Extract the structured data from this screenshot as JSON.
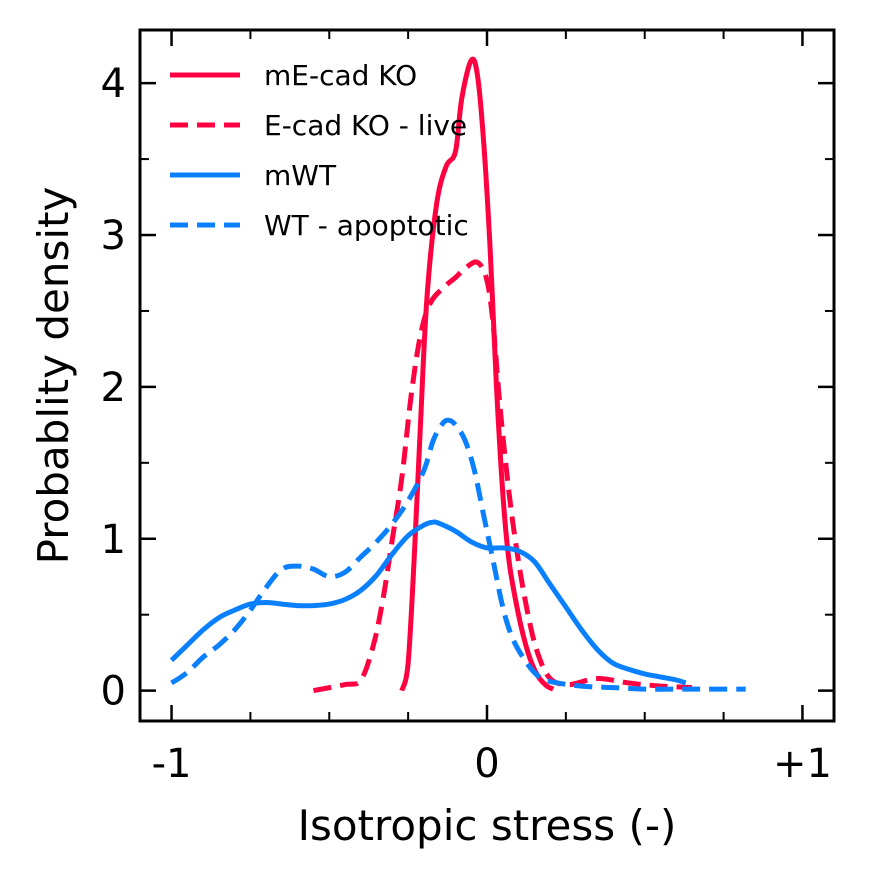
{
  "chart_data": {
    "type": "line",
    "title": "",
    "xlabel": "Isotropic stress (-)",
    "ylabel": "Probablity density",
    "xlim": [
      -1.1,
      1.1
    ],
    "ylim": [
      -0.2,
      4.35
    ],
    "x_ticks": [
      -1,
      0,
      1
    ],
    "x_tick_labels": [
      "-1",
      "0",
      "+1"
    ],
    "x_minor_ticks": [
      -0.75,
      -0.5,
      -0.25,
      0.25,
      0.5,
      0.75
    ],
    "y_ticks": [
      0,
      1,
      2,
      3,
      4
    ],
    "y_tick_labels": [
      "0",
      "1",
      "2",
      "3",
      "4"
    ],
    "y_minor_ticks": [
      0.5,
      1.5,
      2.5,
      3.5
    ],
    "grid": false,
    "legend_position": "top-left",
    "series": [
      {
        "name": "mE-cad KO",
        "color": "#ff0040",
        "dash": "solid",
        "points": [
          [
            -0.27,
            0.0
          ],
          [
            -0.25,
            0.18
          ],
          [
            -0.23,
            0.9
          ],
          [
            -0.21,
            1.8
          ],
          [
            -0.19,
            2.6
          ],
          [
            -0.16,
            3.2
          ],
          [
            -0.13,
            3.45
          ],
          [
            -0.1,
            3.55
          ],
          [
            -0.08,
            3.9
          ],
          [
            -0.05,
            4.15
          ],
          [
            -0.03,
            4.05
          ],
          [
            -0.01,
            3.6
          ],
          [
            0.01,
            2.9
          ],
          [
            0.03,
            2.0
          ],
          [
            0.05,
            1.3
          ],
          [
            0.07,
            0.85
          ],
          [
            0.1,
            0.5
          ],
          [
            0.13,
            0.25
          ],
          [
            0.16,
            0.1
          ],
          [
            0.19,
            0.03
          ],
          [
            0.21,
            0.01
          ]
        ]
      },
      {
        "name": "E-cad KO - live",
        "color": "#ff0040",
        "dash": "dashed",
        "points": [
          [
            -0.55,
            0.0
          ],
          [
            -0.45,
            0.04
          ],
          [
            -0.4,
            0.07
          ],
          [
            -0.36,
            0.3
          ],
          [
            -0.33,
            0.6
          ],
          [
            -0.3,
            1.0
          ],
          [
            -0.27,
            1.4
          ],
          [
            -0.24,
            1.95
          ],
          [
            -0.21,
            2.35
          ],
          [
            -0.18,
            2.55
          ],
          [
            -0.14,
            2.65
          ],
          [
            -0.1,
            2.72
          ],
          [
            -0.07,
            2.78
          ],
          [
            -0.03,
            2.82
          ],
          [
            0.0,
            2.7
          ],
          [
            0.02,
            2.4
          ],
          [
            0.04,
            1.9
          ],
          [
            0.07,
            1.3
          ],
          [
            0.1,
            0.85
          ],
          [
            0.13,
            0.5
          ],
          [
            0.16,
            0.25
          ],
          [
            0.2,
            0.08
          ],
          [
            0.26,
            0.04
          ],
          [
            0.35,
            0.08
          ],
          [
            0.45,
            0.05
          ],
          [
            0.55,
            0.03
          ],
          [
            0.65,
            0.02
          ]
        ]
      },
      {
        "name": "mWT",
        "color": "#0a80ff",
        "dash": "solid",
        "points": [
          [
            -1.0,
            0.2
          ],
          [
            -0.95,
            0.3
          ],
          [
            -0.9,
            0.4
          ],
          [
            -0.85,
            0.48
          ],
          [
            -0.8,
            0.53
          ],
          [
            -0.75,
            0.57
          ],
          [
            -0.7,
            0.58
          ],
          [
            -0.65,
            0.57
          ],
          [
            -0.6,
            0.56
          ],
          [
            -0.55,
            0.56
          ],
          [
            -0.5,
            0.57
          ],
          [
            -0.45,
            0.6
          ],
          [
            -0.4,
            0.66
          ],
          [
            -0.35,
            0.76
          ],
          [
            -0.3,
            0.9
          ],
          [
            -0.25,
            1.02
          ],
          [
            -0.2,
            1.09
          ],
          [
            -0.17,
            1.11
          ],
          [
            -0.15,
            1.1
          ],
          [
            -0.1,
            1.05
          ],
          [
            -0.05,
            0.98
          ],
          [
            0.0,
            0.94
          ],
          [
            0.05,
            0.94
          ],
          [
            0.1,
            0.92
          ],
          [
            0.15,
            0.85
          ],
          [
            0.2,
            0.7
          ],
          [
            0.25,
            0.55
          ],
          [
            0.3,
            0.4
          ],
          [
            0.35,
            0.27
          ],
          [
            0.4,
            0.18
          ],
          [
            0.45,
            0.14
          ],
          [
            0.5,
            0.11
          ],
          [
            0.55,
            0.09
          ],
          [
            0.6,
            0.07
          ],
          [
            0.63,
            0.05
          ]
        ]
      },
      {
        "name": "WT - apoptotic",
        "color": "#0a80ff",
        "dash": "dashed",
        "points": [
          [
            -1.0,
            0.05
          ],
          [
            -0.95,
            0.12
          ],
          [
            -0.9,
            0.22
          ],
          [
            -0.85,
            0.3
          ],
          [
            -0.8,
            0.4
          ],
          [
            -0.75,
            0.53
          ],
          [
            -0.7,
            0.68
          ],
          [
            -0.65,
            0.8
          ],
          [
            -0.6,
            0.82
          ],
          [
            -0.55,
            0.8
          ],
          [
            -0.5,
            0.75
          ],
          [
            -0.45,
            0.78
          ],
          [
            -0.4,
            0.88
          ],
          [
            -0.35,
            0.98
          ],
          [
            -0.3,
            1.1
          ],
          [
            -0.25,
            1.25
          ],
          [
            -0.2,
            1.45
          ],
          [
            -0.17,
            1.65
          ],
          [
            -0.14,
            1.76
          ],
          [
            -0.12,
            1.78
          ],
          [
            -0.1,
            1.75
          ],
          [
            -0.07,
            1.65
          ],
          [
            -0.04,
            1.45
          ],
          [
            -0.01,
            1.15
          ],
          [
            0.02,
            0.85
          ],
          [
            0.05,
            0.55
          ],
          [
            0.08,
            0.35
          ],
          [
            0.12,
            0.2
          ],
          [
            0.16,
            0.1
          ],
          [
            0.2,
            0.06
          ],
          [
            0.3,
            0.03
          ],
          [
            0.4,
            0.02
          ],
          [
            0.5,
            0.01
          ],
          [
            0.6,
            0.01
          ],
          [
            0.7,
            0.01
          ],
          [
            0.82,
            0.01
          ]
        ]
      }
    ]
  }
}
